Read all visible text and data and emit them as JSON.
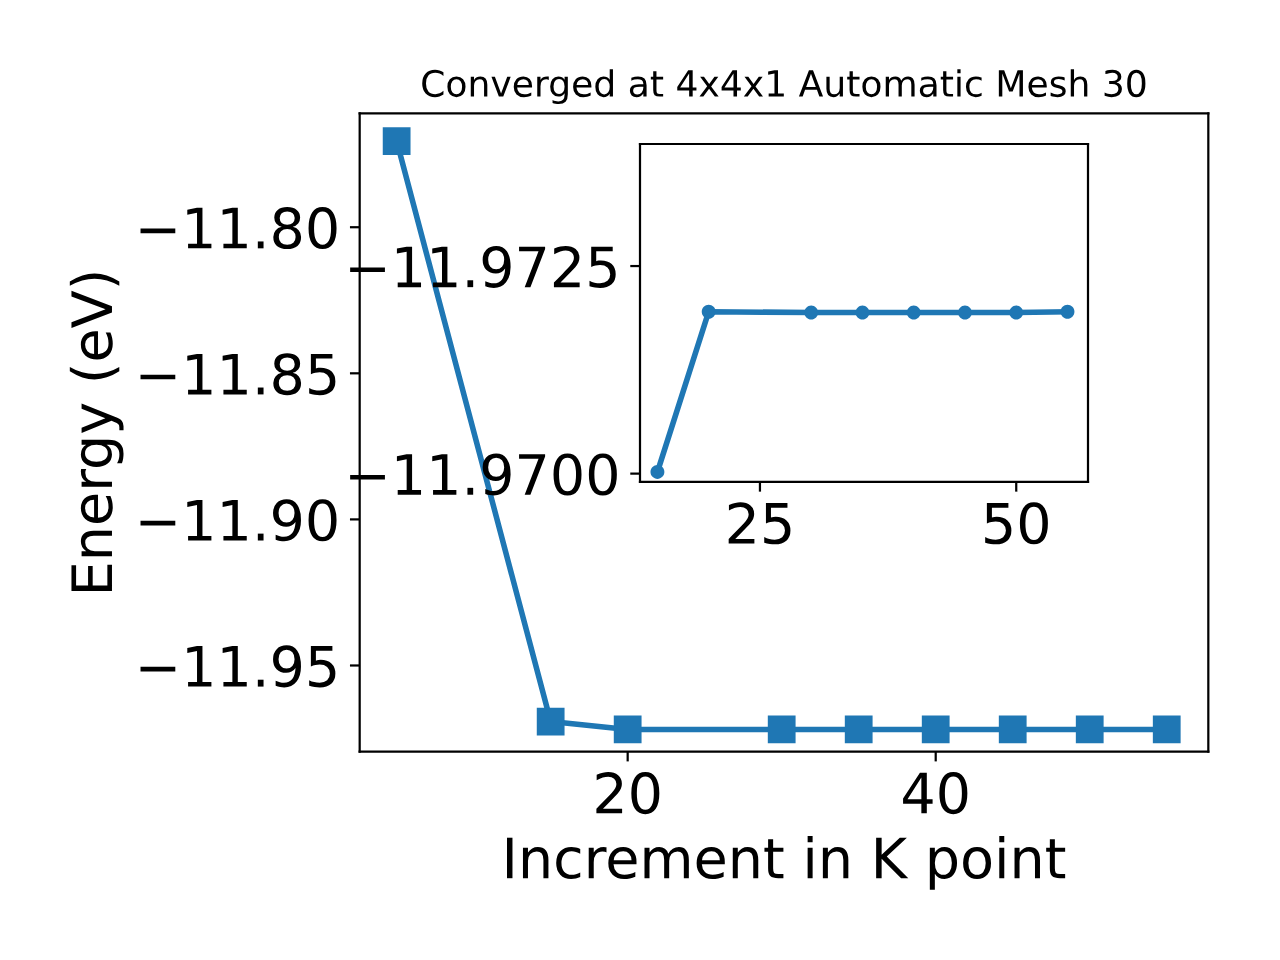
{
  "chart_data": [
    {
      "type": "line",
      "title": "Converged at 4x4x1 Automatic Mesh 30",
      "xlabel": "Increment in K point",
      "ylabel": "Energy (eV)",
      "x": [
        5,
        15,
        20,
        30,
        35,
        40,
        45,
        50,
        55
      ],
      "series": [
        {
          "color": "#1f77b4",
          "values": [
            -11.7705,
            -11.9692,
            -11.9719,
            -11.9719,
            -11.9719,
            -11.9719,
            -11.9719,
            -11.9719,
            -11.9719
          ]
        }
      ],
      "marker": "square",
      "line_style": "solid",
      "xlim": [
        2.6,
        57.7
      ],
      "ylim": [
        -11.9795,
        -11.761
      ],
      "xticks": [
        20,
        40
      ],
      "yticks": [
        {
          "value": -11.95,
          "label": "−11.95"
        },
        {
          "value": -11.9,
          "label": "−11.90"
        },
        {
          "value": -11.85,
          "label": "−11.85"
        },
        {
          "value": -11.8,
          "label": "−11.80"
        }
      ],
      "grid": false,
      "legend": false
    },
    {
      "type": "line",
      "x": [
        15,
        20,
        30,
        35,
        40,
        45,
        50,
        55
      ],
      "series": [
        {
          "color": "#1f77b4",
          "values": [
            -11.97002,
            -11.97195,
            -11.97194,
            -11.97194,
            -11.97194,
            -11.97194,
            -11.97194,
            -11.97195
          ]
        }
      ],
      "marker": "circle",
      "line_style": "solid",
      "xlim": [
        13.3,
        57.0
      ],
      "ylim": [
        -11.9699,
        -11.97397
      ],
      "xticks": [
        25,
        50
      ],
      "yticks": [
        {
          "value": -11.97,
          "label": "−11.9700"
        },
        {
          "value": -11.9725,
          "label": "−11.9725"
        }
      ],
      "grid": false,
      "legend": false
    }
  ]
}
